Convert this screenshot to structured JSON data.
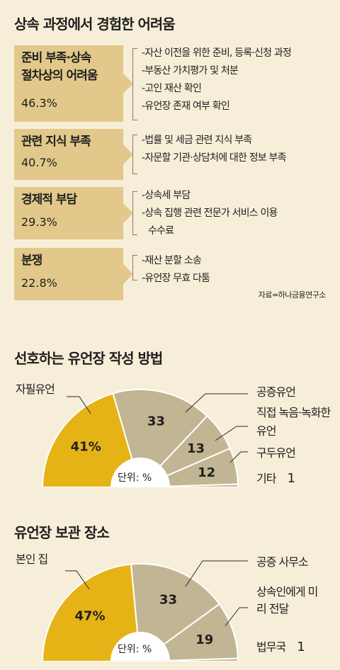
{
  "section1": {
    "title": "상속 과정에서 경험한 어려움",
    "source": "자료=하나금융연구소",
    "rows": [
      {
        "label_lines": [
          "준비 부족·상속",
          "절차상의 어려움"
        ],
        "percent": "46.3%",
        "items": [
          "-자산 이전을 위한 준비, 등록·신청 과정",
          "-부동산 가치평가 및 처분",
          "-고인 재산 확인",
          "-유언장 존재 여부 확인"
        ]
      },
      {
        "label_lines": [
          "관련 지식 부족"
        ],
        "percent": "40.7%",
        "items": [
          "-법률 및 세금 관련 지식 부족",
          "-자문할 기관·상담처에 대한 정보 부족"
        ]
      },
      {
        "label_lines": [
          "경제적 부담"
        ],
        "percent": "29.3%",
        "items": [
          "-상속세 부담",
          "-상속 집행 관련 전문가 서비스 이용",
          "수수료"
        ]
      },
      {
        "label_lines": [
          "분쟁"
        ],
        "percent": "22.8%",
        "items": [
          "-재산 분할 소송",
          "-유언장 무효 다툼"
        ]
      }
    ]
  },
  "chart_data": [
    {
      "type": "pie",
      "title": "선호하는 유언장 작성 방법",
      "unit_label": "단위: %",
      "categories": [
        "자필유언",
        "공증유언",
        "직접 녹음·녹화한 유언",
        "구두유언",
        "기타"
      ],
      "values": [
        41,
        33,
        13,
        12,
        1
      ],
      "value_labels": [
        "41%",
        "33",
        "13",
        "12",
        "1"
      ],
      "colors": [
        "#e6b317",
        "#c2b594",
        "#c2b594",
        "#c2b594",
        "#c2b594"
      ]
    },
    {
      "type": "pie",
      "title": "유언장 보관 장소",
      "unit_label": "단위: %",
      "categories": [
        "본인 집",
        "공증 사무소",
        "상속인에게 미리 전달",
        "법무국"
      ],
      "values": [
        47,
        33,
        19,
        1
      ],
      "value_labels": [
        "47%",
        "33",
        "19",
        "1"
      ],
      "colors": [
        "#e6b317",
        "#c2b594",
        "#c2b594",
        "#c2b594"
      ]
    }
  ]
}
